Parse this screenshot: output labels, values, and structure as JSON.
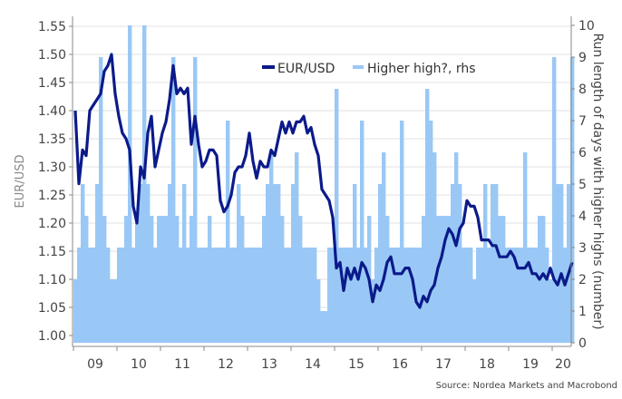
{
  "chart_data": {
    "type": "line+bar",
    "title": "",
    "ylabel": "EUR/USD",
    "y2label": "Run length of days with higher highs (number)",
    "source": "Source: Nordea Markets and Macrobond",
    "ylim": [
      1.0,
      1.55
    ],
    "y2lim": [
      0,
      10
    ],
    "yticks": [
      "1.00",
      "1.05",
      "1.10",
      "1.15",
      "1.20",
      "1.25",
      "1.30",
      "1.35",
      "1.40",
      "1.45",
      "1.50",
      "1.55"
    ],
    "y2ticks": [
      "0",
      "1",
      "2",
      "3",
      "4",
      "5",
      "6",
      "7",
      "8",
      "9",
      "10"
    ],
    "xticks": [
      "09",
      "10",
      "11",
      "12",
      "13",
      "14",
      "15",
      "16",
      "17",
      "18",
      "19",
      "20"
    ],
    "grid": true,
    "legend_position": "top-center",
    "colors": {
      "eurusd": "#0b1a8a",
      "higher_high": "#99c8f6",
      "grid": "#e2e2e2"
    },
    "series": [
      {
        "name": "EUR/USD",
        "type": "line",
        "axis": "left",
        "start": "2009-01",
        "frequency": "monthly",
        "values": [
          1.4,
          1.27,
          1.33,
          1.32,
          1.4,
          1.41,
          1.42,
          1.43,
          1.47,
          1.48,
          1.5,
          1.43,
          1.39,
          1.36,
          1.35,
          1.33,
          1.23,
          1.2,
          1.3,
          1.28,
          1.36,
          1.39,
          1.3,
          1.33,
          1.36,
          1.38,
          1.42,
          1.48,
          1.43,
          1.44,
          1.43,
          1.44,
          1.34,
          1.39,
          1.34,
          1.3,
          1.31,
          1.33,
          1.33,
          1.32,
          1.24,
          1.22,
          1.23,
          1.25,
          1.29,
          1.3,
          1.3,
          1.32,
          1.36,
          1.31,
          1.28,
          1.31,
          1.3,
          1.3,
          1.33,
          1.32,
          1.35,
          1.38,
          1.36,
          1.38,
          1.36,
          1.38,
          1.38,
          1.39,
          1.36,
          1.37,
          1.34,
          1.32,
          1.26,
          1.25,
          1.24,
          1.21,
          1.12,
          1.13,
          1.08,
          1.12,
          1.1,
          1.12,
          1.1,
          1.13,
          1.12,
          1.1,
          1.06,
          1.09,
          1.08,
          1.1,
          1.13,
          1.14,
          1.11,
          1.11,
          1.11,
          1.12,
          1.12,
          1.1,
          1.06,
          1.05,
          1.07,
          1.06,
          1.08,
          1.09,
          1.12,
          1.14,
          1.17,
          1.19,
          1.18,
          1.16,
          1.19,
          1.2,
          1.24,
          1.23,
          1.23,
          1.21,
          1.17,
          1.17,
          1.17,
          1.16,
          1.16,
          1.14,
          1.14,
          1.14,
          1.15,
          1.14,
          1.12,
          1.12,
          1.12,
          1.13,
          1.11,
          1.11,
          1.1,
          1.11,
          1.1,
          1.12,
          1.1,
          1.09,
          1.11,
          1.09,
          1.11,
          1.13
        ]
      },
      {
        "name": "Higher high?, rhs",
        "type": "bar",
        "axis": "right",
        "start": "2009-01",
        "frequency": "monthly",
        "values": [
          2,
          3,
          5,
          4,
          3,
          3,
          5,
          9,
          4,
          3,
          2,
          2,
          3,
          3,
          4,
          10,
          3,
          4,
          5,
          10,
          5,
          4,
          3,
          4,
          4,
          4,
          5,
          9,
          4,
          3,
          5,
          3,
          4,
          9,
          3,
          3,
          3,
          4,
          3,
          3,
          3,
          3,
          7,
          3,
          3,
          5,
          4,
          3,
          3,
          3,
          3,
          3,
          4,
          5,
          6,
          5,
          5,
          4,
          3,
          3,
          5,
          6,
          4,
          3,
          3,
          3,
          3,
          2,
          1,
          1,
          3,
          3,
          8,
          3,
          3,
          3,
          3,
          5,
          3,
          7,
          3,
          4,
          2,
          3,
          5,
          6,
          4,
          3,
          3,
          3,
          7,
          3,
          3,
          3,
          3,
          3,
          4,
          8,
          7,
          6,
          4,
          4,
          4,
          4,
          5,
          6,
          5,
          3,
          3,
          3,
          2,
          3,
          3,
          5,
          3,
          5,
          5,
          4,
          4,
          3,
          3,
          3,
          3,
          3,
          6,
          3,
          3,
          3,
          4,
          4,
          3,
          2,
          9,
          5,
          5,
          3,
          5,
          9
        ]
      }
    ]
  }
}
